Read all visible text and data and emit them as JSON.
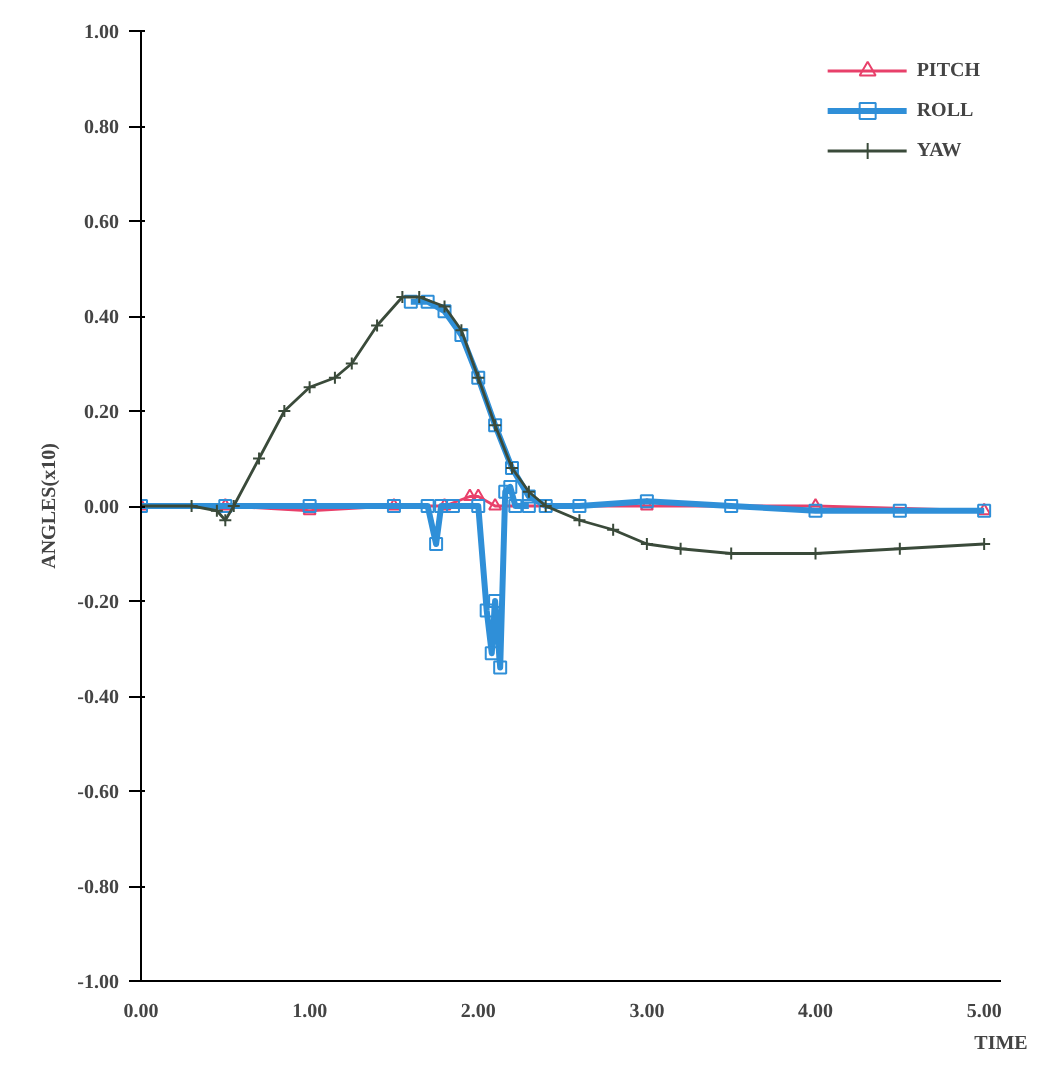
{
  "chart_data": {
    "type": "line",
    "xlabel": "TIME",
    "ylabel": "ANGLES(x10)",
    "xlim": [
      0,
      5.1
    ],
    "ylim": [
      -1,
      1
    ],
    "xticks": [
      {
        "value": 0,
        "label": "0.00"
      },
      {
        "value": 1,
        "label": "1.00"
      },
      {
        "value": 2,
        "label": "2.00"
      },
      {
        "value": 3,
        "label": "3.00"
      },
      {
        "value": 4,
        "label": "4.00"
      },
      {
        "value": 5,
        "label": "5.00"
      }
    ],
    "yticks": [
      {
        "value": -1,
        "label": "-1.00"
      },
      {
        "value": -0.8,
        "label": "-0.80"
      },
      {
        "value": -0.6,
        "label": "-0.60"
      },
      {
        "value": -0.4,
        "label": "-0.40"
      },
      {
        "value": -0.2,
        "label": "-0.20"
      },
      {
        "value": 0,
        "label": "0.00"
      },
      {
        "value": 0.2,
        "label": "0.20"
      },
      {
        "value": 0.4,
        "label": "0.40"
      },
      {
        "value": 0.6,
        "label": "0.60"
      },
      {
        "value": 0.8,
        "label": "0.80"
      },
      {
        "value": 1,
        "label": "1.00"
      }
    ],
    "grid": false,
    "legend": "top right",
    "line_style": "solid",
    "series": [
      {
        "name": "PITCH",
        "color": "#e8406a",
        "marker": "triangle",
        "x": [
          0,
          0.5,
          1.0,
          1.5,
          1.8,
          1.95,
          2.0,
          2.1,
          3.0,
          4.0,
          5.0
        ],
        "values": [
          0,
          0,
          -0.01,
          0,
          0,
          0.02,
          0.02,
          0,
          0,
          0,
          -0.01
        ]
      },
      {
        "name": "ROLL",
        "color": "#2f8fd8",
        "marker": "square",
        "x": [
          0,
          0.5,
          1.0,
          1.5,
          1.7,
          1.75,
          1.78,
          1.85,
          2.0,
          2.05,
          2.08,
          2.1,
          2.13,
          2.16,
          2.19,
          2.22,
          2.3
        ],
        "values": [
          0,
          0,
          0,
          0,
          0,
          -0.08,
          0,
          0,
          0,
          -0.22,
          -0.31,
          -0.2,
          -0.34,
          0.03,
          0.04,
          0,
          0
        ]
      },
      {
        "color": "#2f8fd8",
        "marker": "square",
        "x": [
          1.6,
          1.7,
          1.8,
          1.9,
          2.0,
          2.1,
          2.2,
          2.3,
          2.4,
          2.6,
          3.0,
          3.5,
          4.0,
          4.5,
          5.0
        ],
        "values": [
          0.43,
          0.43,
          0.41,
          0.36,
          0.27,
          0.17,
          0.08,
          0.02,
          0,
          0,
          0.01,
          0,
          -0.01,
          -0.01,
          -0.01
        ]
      },
      {
        "name": "YAW",
        "color": "#3a4a3a",
        "marker": "cross",
        "x": [
          0,
          0.3,
          0.45,
          0.5,
          0.55,
          0.7,
          0.85,
          1.0,
          1.15,
          1.25,
          1.4,
          1.55,
          1.65,
          1.8,
          1.9,
          2.0,
          2.1,
          2.2,
          2.3,
          2.4,
          2.6,
          2.8,
          3.0,
          3.2,
          3.5,
          4.0,
          4.5,
          5.0
        ],
        "values": [
          0,
          0,
          -0.01,
          -0.03,
          0,
          0.1,
          0.2,
          0.25,
          0.27,
          0.3,
          0.38,
          0.44,
          0.44,
          0.42,
          0.37,
          0.27,
          0.17,
          0.08,
          0.03,
          0,
          -0.03,
          -0.05,
          -0.08,
          -0.09,
          -0.1,
          -0.1,
          -0.09,
          -0.08
        ]
      }
    ]
  }
}
